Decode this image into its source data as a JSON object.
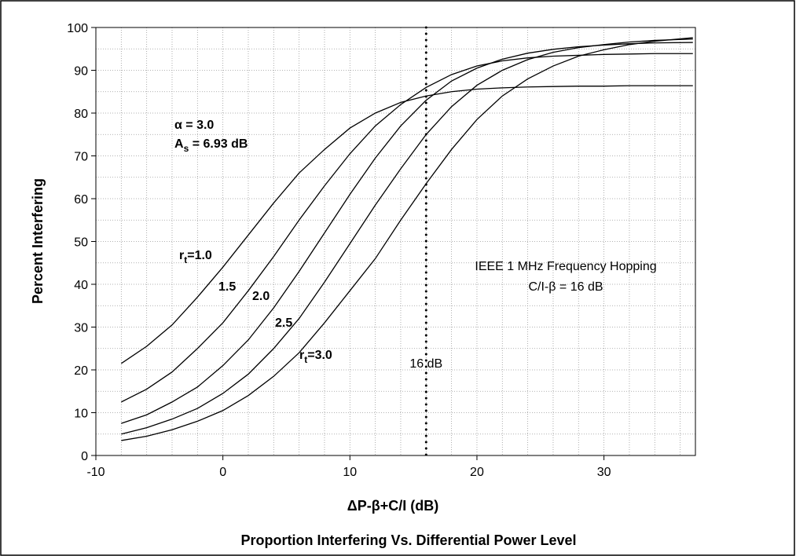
{
  "chart_data": {
    "type": "line",
    "title": "Proportion Interfering Vs. Differential Power Level",
    "xlabel": "ΔP-β+C/I (dB)",
    "ylabel": "Percent Interfering",
    "x": [
      -8,
      -6,
      -4,
      -2,
      0,
      2,
      4,
      6,
      8,
      10,
      12,
      14,
      16,
      18,
      20,
      22,
      24,
      26,
      28,
      30,
      32,
      34,
      37
    ],
    "series": [
      {
        "color": "#000000",
        "values": [
          21.5,
          25.5,
          30.5,
          37,
          44,
          51.5,
          59,
          66,
          71.5,
          76.5,
          80,
          82.5,
          84,
          85,
          85.6,
          85.9,
          86.1,
          86.2,
          86.3,
          86.3,
          86.4,
          86.4,
          86.4
        ]
      },
      {
        "color": "#000000",
        "values": [
          12.5,
          15.5,
          19.5,
          25,
          31,
          38.5,
          46.5,
          55,
          63,
          70.5,
          77,
          82,
          86,
          89,
          91,
          92.2,
          92.9,
          93.3,
          93.5,
          93.7,
          93.8,
          93.9,
          93.9
        ]
      },
      {
        "color": "#000000",
        "values": [
          7.5,
          9.5,
          12.5,
          16,
          21,
          27,
          34.5,
          43,
          52,
          61,
          69.5,
          77,
          83,
          87.5,
          90.5,
          92.6,
          94,
          94.9,
          95.5,
          95.9,
          96.2,
          96.4,
          96.5
        ]
      },
      {
        "color": "#000000",
        "values": [
          5,
          6.5,
          8.5,
          11,
          14.5,
          19,
          25,
          32,
          40.5,
          49.5,
          58.5,
          67,
          75,
          81.5,
          86.5,
          90,
          92.5,
          94.2,
          95.3,
          96,
          96.6,
          97,
          97.3
        ]
      },
      {
        "color": "#000000",
        "values": [
          3.5,
          4.5,
          6,
          8,
          10.5,
          14,
          18.5,
          24,
          31,
          38.5,
          46,
          55,
          63.5,
          71.5,
          78.5,
          84,
          88,
          91,
          93.3,
          94.8,
          96,
          96.8,
          97.6
        ]
      }
    ],
    "xlim": [
      -10,
      37.2
    ],
    "ylim": [
      0,
      100
    ],
    "xticks": [
      -10,
      0,
      10,
      20,
      30
    ],
    "yticks": [
      0,
      10,
      20,
      30,
      40,
      50,
      60,
      70,
      80,
      90,
      100
    ],
    "xticks_minor": [
      -8,
      -6,
      -4,
      -2,
      2,
      4,
      6,
      8,
      12,
      14,
      16,
      18,
      22,
      24,
      26,
      28,
      32,
      34,
      36
    ],
    "yticks_minor": [
      5,
      15,
      25,
      35,
      45,
      55,
      65,
      75,
      85,
      95
    ],
    "grid": true,
    "reference_line": {
      "x": 16,
      "label": "16 dB"
    },
    "annotations": {
      "alpha": "α = 3.0",
      "as": [
        "A",
        "s",
        " = 6.93 dB"
      ],
      "curve_labels": [
        [
          "r",
          "t",
          "=1.0"
        ],
        [
          "1.5"
        ],
        [
          "2.0"
        ],
        [
          "2.5"
        ],
        [
          "r",
          "t",
          "=3.0"
        ]
      ],
      "hopping": [
        "IEEE 1 MHz Frequency Hopping",
        "C/I-β = 16 dB"
      ]
    }
  }
}
